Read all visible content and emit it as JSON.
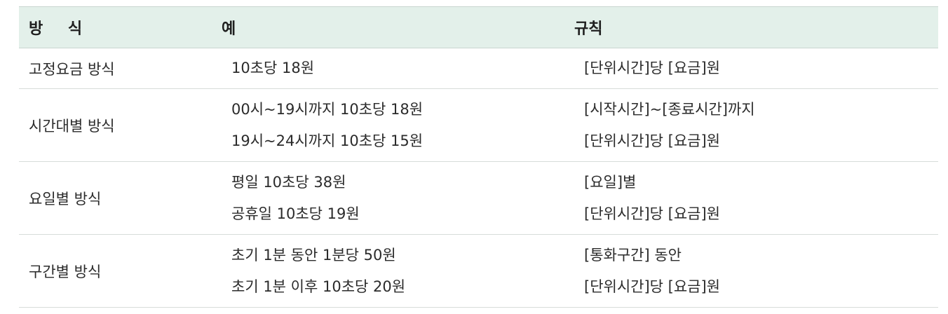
{
  "header": {
    "method": "방 식",
    "example": "예",
    "rule": "규칙"
  },
  "rows": [
    {
      "method": "고정요금 방식",
      "examples": [
        "10초당 18원"
      ],
      "rules": [
        "[단위시간]당 [요금]원"
      ]
    },
    {
      "method": "시간대별 방식",
      "examples": [
        "00시~19시까지 10초당 18원",
        "19시~24시까지 10초당 15원"
      ],
      "rules": [
        "[시작시간]~[종료시간]까지",
        "[단위시간]당 [요금]원"
      ]
    },
    {
      "method": "요일별 방식",
      "examples": [
        "평일 10초당 38원",
        "공휴일 10초당 19원"
      ],
      "rules": [
        "[요일]별",
        "[단위시간]당 [요금]원"
      ]
    },
    {
      "method": "구간별 방식",
      "examples": [
        "초기 1분 동안 1분당 50원",
        "초기 1분 이후 10초당 20원"
      ],
      "rules": [
        "[통화구간] 동안",
        "[단위시간]당 [요금]원"
      ]
    }
  ]
}
